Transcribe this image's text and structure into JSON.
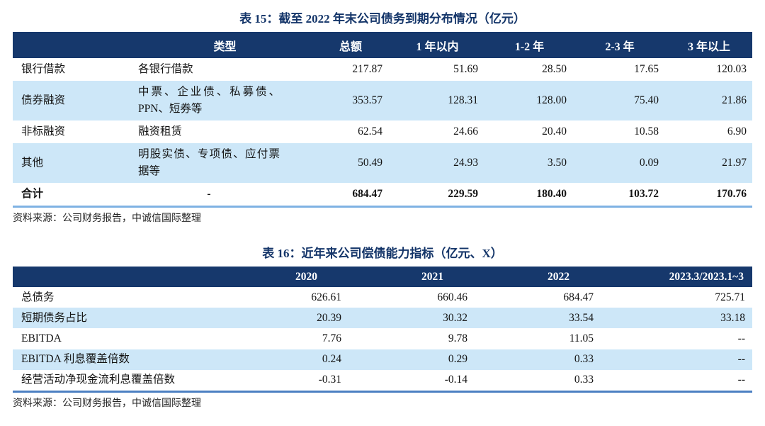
{
  "colors": {
    "header_bg": "#16386c",
    "header_text": "#ffffff",
    "alt_row_bg": "#cde7f8",
    "title_text": "#143569",
    "table15_bottom_line": "#7fb2e3",
    "table16_bottom_line": "#4c80c2"
  },
  "table15": {
    "title": "表 15：截至 2022 年末公司债务到期分布情况（亿元）",
    "headers": [
      "",
      "类型",
      "总额",
      "1 年以内",
      "1-2 年",
      "2-3 年",
      "3 年以上"
    ],
    "rows": [
      {
        "label": "银行借款",
        "type": "各银行借款",
        "values": [
          "217.87",
          "51.69",
          "28.50",
          "17.65",
          "120.03"
        ],
        "bold": false
      },
      {
        "label": "债券融资",
        "type": "中票、企业债、私募债、PPN、短券等",
        "values": [
          "353.57",
          "128.31",
          "128.00",
          "75.40",
          "21.86"
        ],
        "bold": false
      },
      {
        "label": "非标融资",
        "type": "融资租赁",
        "values": [
          "62.54",
          "24.66",
          "20.40",
          "10.58",
          "6.90"
        ],
        "bold": false
      },
      {
        "label": "其他",
        "type": "明股实债、专项债、应付票据等",
        "values": [
          "50.49",
          "24.93",
          "3.50",
          "0.09",
          "21.97"
        ],
        "bold": false
      },
      {
        "label": "合计",
        "type": "-",
        "values": [
          "684.47",
          "229.59",
          "180.40",
          "103.72",
          "170.76"
        ],
        "bold": true
      }
    ],
    "source": "资料来源：公司财务报告，中诚信国际整理"
  },
  "table16": {
    "title": "表 16：近年来公司偿债能力指标（亿元、X）",
    "headers": [
      "",
      "2020",
      "2021",
      "2022",
      "2023.3/2023.1~3"
    ],
    "rows": [
      {
        "label": "总债务",
        "values": [
          "626.61",
          "660.46",
          "684.47",
          "725.71"
        ],
        "bold": false
      },
      {
        "label": "短期债务占比",
        "values": [
          "20.39",
          "30.32",
          "33.54",
          "33.18"
        ],
        "bold": false
      },
      {
        "label": "EBITDA",
        "values": [
          "7.76",
          "9.78",
          "11.05",
          "--"
        ],
        "bold": false
      },
      {
        "label": "EBITDA 利息覆盖倍数",
        "values": [
          "0.24",
          "0.29",
          "0.33",
          "--"
        ],
        "bold": false
      },
      {
        "label": "经营活动净现金流利息覆盖倍数",
        "values": [
          "-0.31",
          "-0.14",
          "0.33",
          "--"
        ],
        "bold": false
      }
    ],
    "source": "资料来源：公司财务报告，中诚信国际整理"
  }
}
